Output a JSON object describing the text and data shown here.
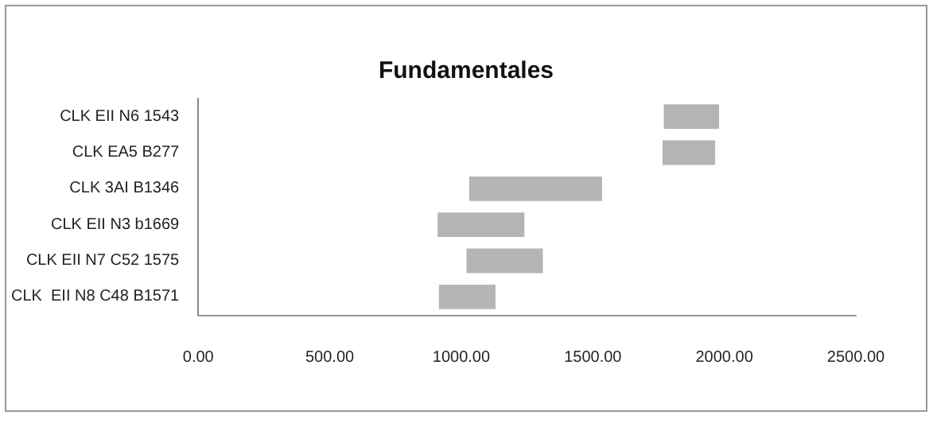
{
  "chart_data": {
    "type": "bar",
    "title": "Fundamentales",
    "orientation": "horizontal",
    "categories": [
      "CLK EII N6 1543",
      "CLK EA5 B277",
      "CLK 3AI B1346",
      "CLK EII N3 b1669",
      "CLK EII N7 C52 1575",
      "CLK  EII N8 C48 B1571"
    ],
    "base": [
      1770,
      1765,
      1030,
      910,
      1020,
      915
    ],
    "values": [
      210,
      200,
      505,
      330,
      290,
      215
    ],
    "color": "#b4b4b4",
    "xlim": [
      0,
      2500
    ],
    "xticks": [
      {
        "value": 0,
        "label": "0.00"
      },
      {
        "value": 500,
        "label": "500.00"
      },
      {
        "value": 1000,
        "label": "1000.00"
      },
      {
        "value": 1500,
        "label": "1500.00"
      },
      {
        "value": 2000,
        "label": "2000.00"
      },
      {
        "value": 2500,
        "label": "2500.00"
      }
    ],
    "grid": false
  }
}
